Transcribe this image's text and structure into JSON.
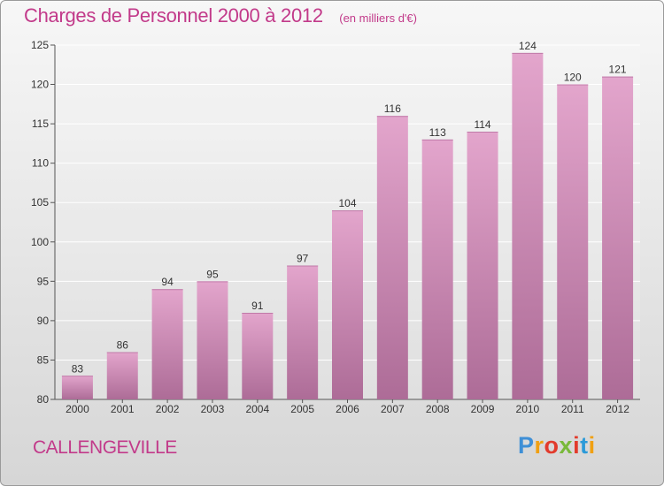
{
  "header": {
    "title": "Charges de Personnel 2000 à 2012",
    "subtitle": "(en milliers d'€)"
  },
  "footer": {
    "city": "CALLENGEVILLE",
    "logo_text": "Proxiti"
  },
  "colors": {
    "title": "#c23a8a",
    "bar_top": "#e3a5cc",
    "bar_bottom": "#ad6c97",
    "logo": [
      "#3e8fd6",
      "#f0a012",
      "#e23b2c",
      "#79b93a",
      "#2b9ad8"
    ]
  },
  "chart_data": {
    "type": "bar",
    "title": "Charges de Personnel 2000 à 2012",
    "subtitle": "(en milliers d'€)",
    "xlabel": "",
    "ylabel": "",
    "categories": [
      "2000",
      "2001",
      "2002",
      "2003",
      "2004",
      "2005",
      "2006",
      "2007",
      "2008",
      "2009",
      "2010",
      "2011",
      "2012"
    ],
    "values": [
      83,
      86,
      94,
      95,
      91,
      97,
      104,
      116,
      113,
      114,
      124,
      120,
      121
    ],
    "ylim": [
      80,
      125
    ],
    "yticks": [
      80,
      85,
      90,
      95,
      100,
      105,
      110,
      115,
      120,
      125
    ],
    "grid": true
  }
}
